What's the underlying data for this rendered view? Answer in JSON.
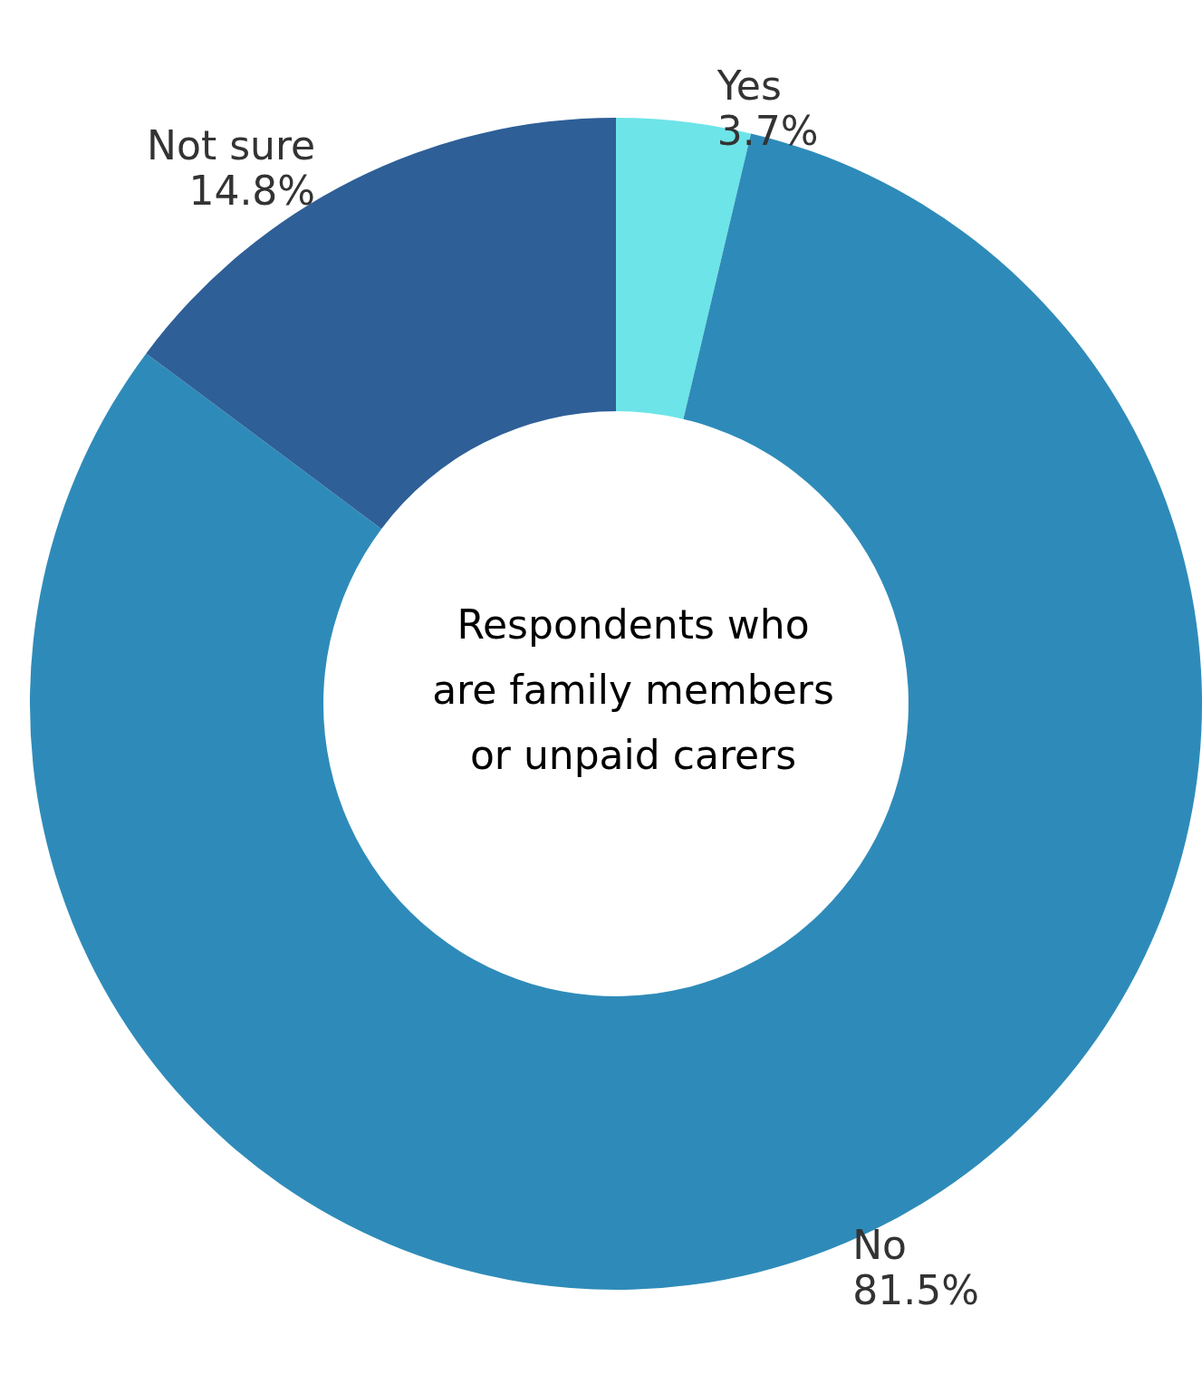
{
  "chart_data": {
    "type": "donut",
    "title": "Respondents who\nare family members\nor unpaid carers",
    "categories": [
      "Yes",
      "No",
      "Not sure"
    ],
    "values": [
      3.7,
      81.5,
      14.8
    ],
    "value_labels": [
      "3.7%",
      "81.5%",
      "14.8%"
    ],
    "colors": [
      "#6de4e8",
      "#2e8bb9",
      "#2e5f97"
    ],
    "legend": false
  }
}
